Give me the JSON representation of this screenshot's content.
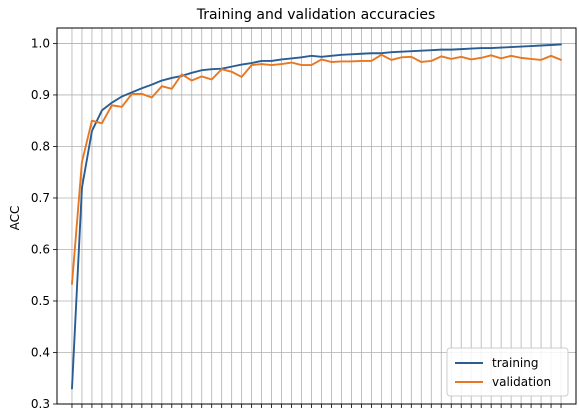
{
  "chart_data": {
    "type": "line",
    "title": "Training and validation accuracies",
    "xlabel": "",
    "ylabel": "ACC",
    "xlim": [
      -1.5,
      50.5
    ],
    "ylim": [
      0.3,
      1.03
    ],
    "yticks": [
      0.3,
      0.4,
      0.5,
      0.6,
      0.7,
      0.8,
      0.9,
      1.0
    ],
    "ytick_labels": [
      "0.3",
      "0.4",
      "0.5",
      "0.6",
      "0.7",
      "0.8",
      "0.9",
      "1.0"
    ],
    "grid": true,
    "x_tick_labels_visible": false,
    "legend_position": "lower-right",
    "x": [
      0,
      1,
      2,
      3,
      4,
      5,
      6,
      7,
      8,
      9,
      10,
      11,
      12,
      13,
      14,
      15,
      16,
      17,
      18,
      19,
      20,
      21,
      22,
      23,
      24,
      25,
      26,
      27,
      28,
      29,
      30,
      31,
      32,
      33,
      34,
      35,
      36,
      37,
      38,
      39,
      40,
      41,
      42,
      43,
      44,
      45,
      46,
      47,
      48,
      49
    ],
    "series": [
      {
        "name": "training",
        "color": "#2a5d92",
        "values": [
          0.33,
          0.72,
          0.83,
          0.87,
          0.885,
          0.897,
          0.905,
          0.913,
          0.92,
          0.928,
          0.933,
          0.937,
          0.943,
          0.948,
          0.95,
          0.951,
          0.955,
          0.959,
          0.962,
          0.966,
          0.966,
          0.969,
          0.971,
          0.973,
          0.976,
          0.974,
          0.976,
          0.978,
          0.979,
          0.98,
          0.981,
          0.981,
          0.983,
          0.984,
          0.985,
          0.986,
          0.987,
          0.988,
          0.988,
          0.989,
          0.99,
          0.991,
          0.991,
          0.992,
          0.993,
          0.994,
          0.995,
          0.996,
          0.997,
          0.998
        ]
      },
      {
        "name": "validation",
        "color": "#e87722",
        "values": [
          0.533,
          0.77,
          0.85,
          0.845,
          0.88,
          0.877,
          0.902,
          0.902,
          0.895,
          0.917,
          0.912,
          0.94,
          0.928,
          0.936,
          0.93,
          0.95,
          0.945,
          0.935,
          0.958,
          0.96,
          0.958,
          0.96,
          0.963,
          0.958,
          0.958,
          0.969,
          0.964,
          0.965,
          0.965,
          0.966,
          0.966,
          0.978,
          0.968,
          0.973,
          0.974,
          0.964,
          0.966,
          0.975,
          0.97,
          0.974,
          0.969,
          0.972,
          0.977,
          0.971,
          0.976,
          0.972,
          0.97,
          0.968,
          0.976,
          0.968
        ]
      }
    ]
  }
}
